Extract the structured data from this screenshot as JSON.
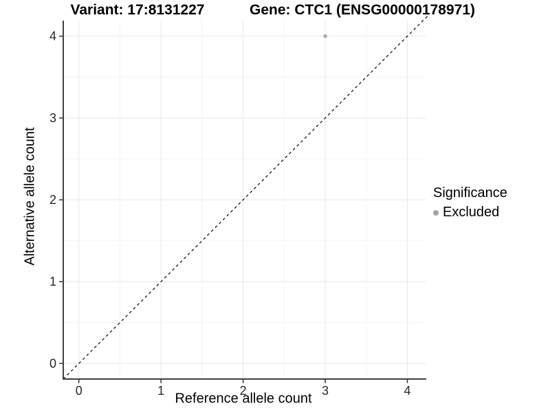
{
  "header": {
    "title_left": "Variant: 17:8131227",
    "title_right": "Gene: CTC1 (ENSG00000178971)"
  },
  "legend": {
    "title": "Significance",
    "items": [
      {
        "label": "Excluded",
        "color": "#a3a3a3"
      }
    ]
  },
  "chart_data": {
    "type": "scatter",
    "titles": [
      "Variant: 17:8131227",
      "Gene: CTC1 (ENSG00000178971)"
    ],
    "xlabel": "Reference allele count",
    "ylabel": "Alternative allele count",
    "x_ticks": [
      0,
      1,
      2,
      3,
      4
    ],
    "y_ticks": [
      0,
      1,
      2,
      3,
      4
    ],
    "xlim": [
      -0.19,
      4.23
    ],
    "ylim": [
      -0.19,
      4.19
    ],
    "minor_grid_step": 0.5,
    "grid": true,
    "legend_position": "right",
    "series": [
      {
        "name": "Excluded",
        "color": "#a8a8a8",
        "points": [
          {
            "x": 3,
            "y": 4
          }
        ]
      }
    ],
    "reference_line": {
      "kind": "identity",
      "slope": 1,
      "intercept": 0,
      "style": "dashed",
      "color": "#000000"
    }
  },
  "colors": {
    "background": "#ffffff",
    "grid_major": "#e8e8e8",
    "grid_minor": "#f4f4f4",
    "axis_line": "#3f3f3f",
    "tick_mark": "#333333",
    "tick_text": "#262626",
    "point": "#a8a8a8",
    "legend_key": "#a3a3a3"
  }
}
